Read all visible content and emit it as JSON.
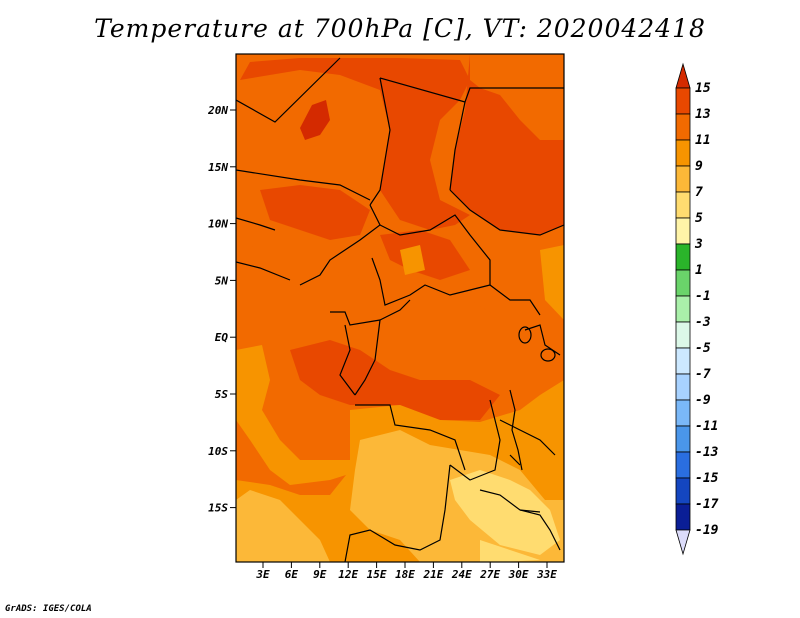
{
  "title": "Temperature at 700hPa [C], VT: 2020042418",
  "credit": "GrADS: IGES/COLA",
  "lat_labels": [
    "20N",
    "15N",
    "10N",
    "5N",
    "EQ",
    "5S",
    "10S",
    "15S"
  ],
  "lon_labels": [
    "3E",
    "6E",
    "9E",
    "12E",
    "15E",
    "18E",
    "21E",
    "24E",
    "27E",
    "30E",
    "33E"
  ],
  "colorbar": {
    "labels": [
      "15",
      "13",
      "11",
      "9",
      "7",
      "5",
      "3",
      "1",
      "-1",
      "-3",
      "-5",
      "-7",
      "-9",
      "-11",
      "-13",
      "-15",
      "-17",
      "-19"
    ],
    "colors": [
      "#d42a00",
      "#e84800",
      "#f26a00",
      "#f79400",
      "#fcb838",
      "#ffdc70",
      "#fff4a8",
      "#2ab42a",
      "#6ad46a",
      "#aaf0aa",
      "#dcf8e8",
      "#cce8ff",
      "#a8d2ff",
      "#7ab8f8",
      "#4a96ea",
      "#2a6ee0",
      "#1446c0",
      "#0a1e96",
      "#060a5a"
    ],
    "top_arrow_color": "#d42a00",
    "bottom_arrow_color": "#dcdcfa"
  }
}
